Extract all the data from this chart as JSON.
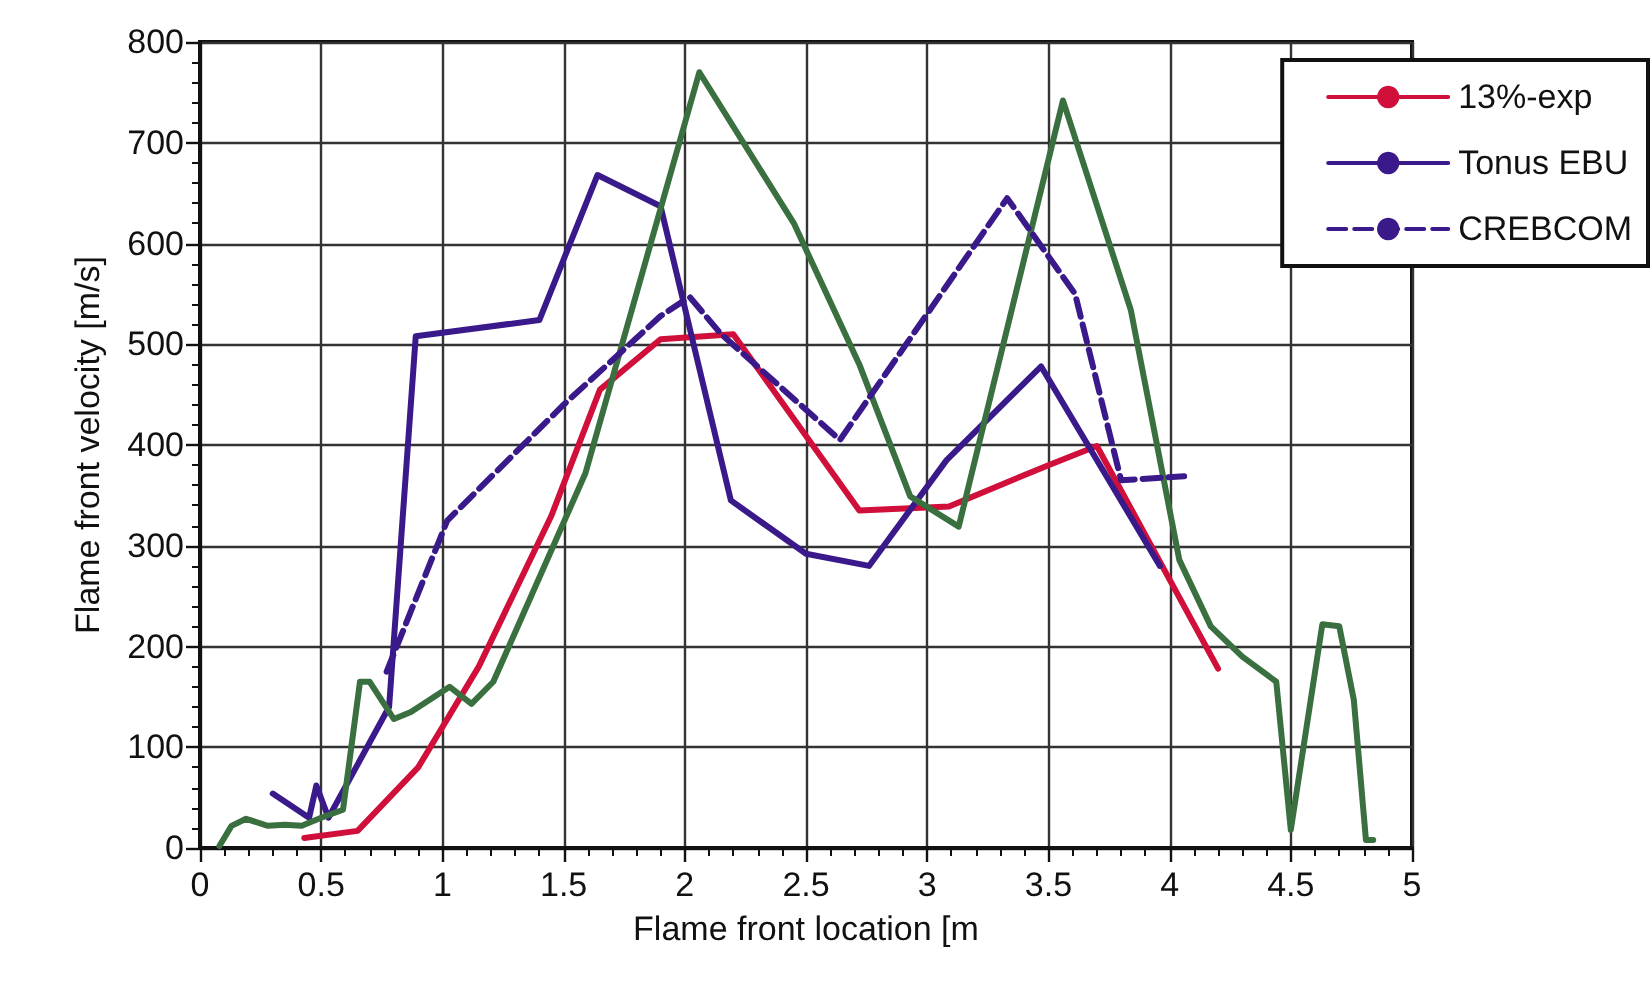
{
  "chart_data": {
    "type": "line",
    "xlabel": "Flame front location [m",
    "ylabel": "Flame front velocity [m/s]",
    "xlim": [
      0,
      5
    ],
    "xticks": [
      0,
      0.5,
      1,
      1.5,
      2,
      2.5,
      3,
      3.5,
      4,
      4.5,
      5
    ],
    "ylim": [
      0,
      800
    ],
    "yticks": [
      0,
      100,
      200,
      300,
      400,
      500,
      600,
      700,
      800
    ],
    "grid": true,
    "legend": "top right",
    "marker": "none",
    "series": [
      {
        "name": "13%-exp",
        "color": "#d0103a",
        "line_style": "solid",
        "x": [
          0.43,
          0.65,
          0.9,
          1.15,
          1.45,
          1.65,
          1.9,
          2.2,
          2.72,
          3.09,
          3.5,
          3.7,
          4.2
        ],
        "values": [
          10,
          17,
          80,
          180,
          330,
          455,
          505,
          510,
          335,
          339,
          380,
          399,
          178
        ]
      },
      {
        "name": "Tonus EBU",
        "color": "#3a1a8a",
        "line_style": "solid",
        "x": [
          0.3,
          0.45,
          0.48,
          0.53,
          0.78,
          0.89,
          1.4,
          1.64,
          1.9,
          2.19,
          2.5,
          2.76,
          3.08,
          3.47,
          3.96
        ],
        "values": [
          54,
          30,
          62,
          30,
          140,
          508,
          524,
          668,
          637,
          345,
          292,
          280,
          385,
          478,
          280
        ]
      },
      {
        "color": "#3a7040",
        "line_style": "solid",
        "x": [
          0.08,
          0.13,
          0.19,
          0.28,
          0.35,
          0.42,
          0.5,
          0.59,
          0.66,
          0.7,
          0.8,
          0.87,
          1.03,
          1.12,
          1.21,
          1.59,
          2.06,
          2.45,
          2.72,
          2.93,
          3.13,
          3.56,
          3.84,
          4.04,
          4.17,
          4.3,
          4.44,
          4.5,
          4.63,
          4.7,
          4.76,
          4.81,
          4.84
        ],
        "values": [
          2,
          22,
          29,
          22,
          23,
          22,
          30,
          38,
          165,
          165,
          128,
          135,
          160,
          143,
          165,
          372,
          770,
          620,
          480,
          349,
          319,
          742,
          534,
          286,
          220,
          190,
          165,
          18,
          222,
          220,
          147,
          8,
          8
        ]
      },
      {
        "name": "CREBCOM",
        "color": "#3a1a8a",
        "line_style": "dashed",
        "x": [
          0.77,
          1.02,
          1.5,
          1.9,
          2.02,
          2.15,
          2.64,
          3.33,
          3.61,
          3.8,
          4.06
        ],
        "values": [
          175,
          325,
          440,
          528,
          547,
          510,
          405,
          645,
          550,
          365,
          369
        ]
      }
    ]
  }
}
